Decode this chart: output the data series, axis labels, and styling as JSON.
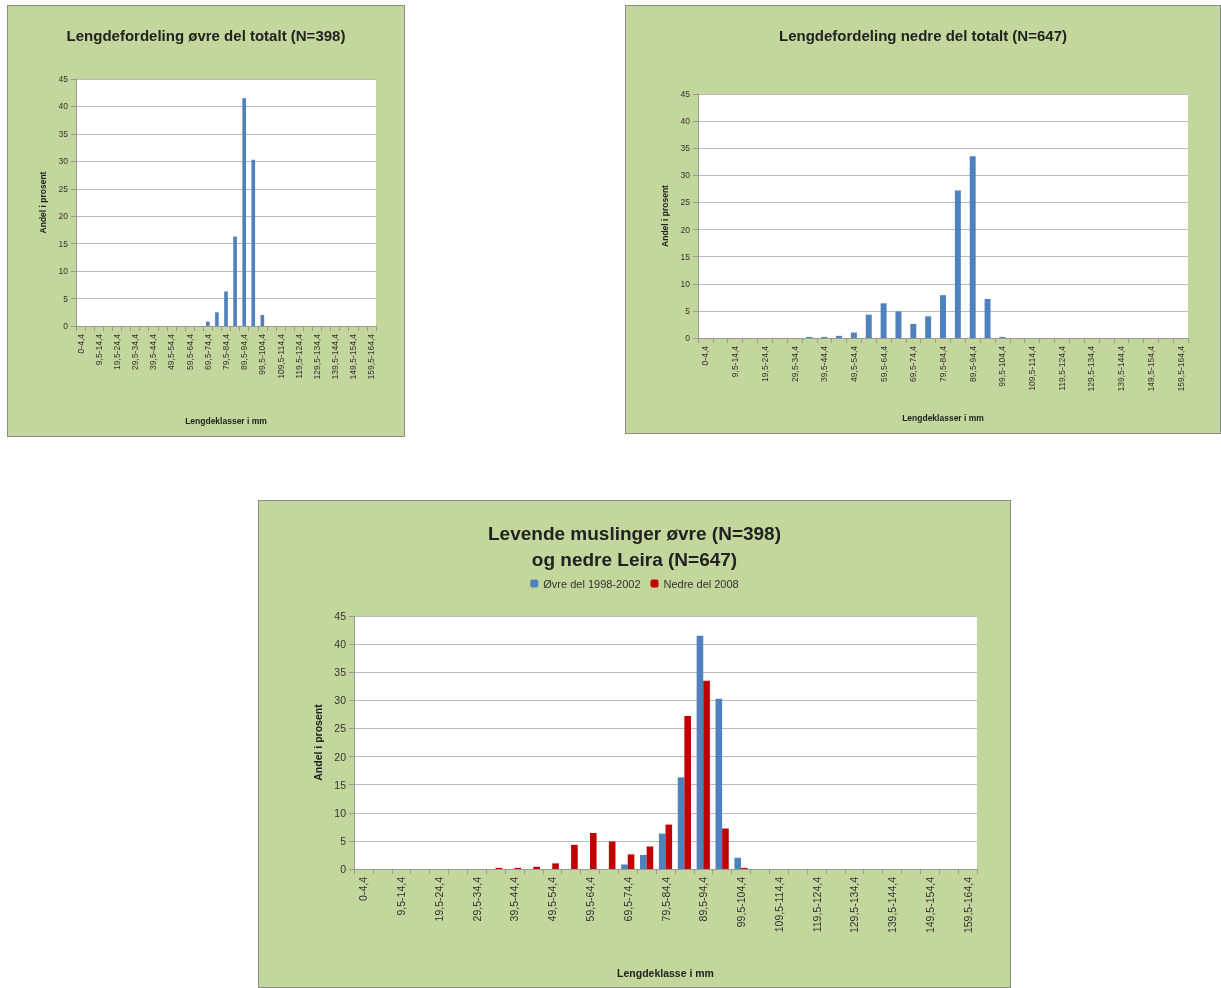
{
  "chart_data": [
    {
      "type": "bar",
      "title": "Lengdefordeling øvre del totalt (N=398)",
      "xlabel": "Lengdeklasser i mm",
      "ylabel": "Andel i prosent",
      "categories": [
        "0-4,4",
        null,
        "9,5-14,4",
        null,
        "19,5-24,4",
        null,
        "29,5-34,4",
        null,
        "39,5-44,4",
        null,
        "49,5-54,4",
        null,
        "59,5-64,4",
        null,
        "69,5-74,4",
        null,
        "79,5-84,4",
        null,
        "89,5-94,4",
        null,
        "99,5-104,4",
        null,
        "109,5-114,4",
        null,
        "119,5-124,4",
        null,
        "129,5-134,4",
        null,
        "139,5-144,4",
        null,
        "149,5-154,4",
        null,
        "159,5-164,4"
      ],
      "values": [
        0,
        0,
        0,
        0,
        0,
        0,
        0,
        0,
        0,
        0,
        0,
        0,
        0,
        0,
        0.8,
        2.5,
        6.3,
        16.3,
        41.5,
        30.3,
        2.0,
        0,
        0,
        0,
        0,
        0,
        0,
        0,
        0,
        0,
        0,
        0,
        0
      ],
      "color": "#4f81bd",
      "ylim": [
        0,
        45
      ],
      "yticks": [
        0,
        5,
        10,
        15,
        20,
        25,
        30,
        35,
        40,
        45
      ],
      "grid": "y",
      "legend": false
    },
    {
      "type": "bar",
      "title": "Lengdefordeling nedre del totalt (N=647)",
      "xlabel": "Lengdeklasser i mm",
      "ylabel": "Andel i prosent",
      "categories": [
        "0-4,4",
        null,
        "9,5-14,4",
        null,
        "19,5-24,4",
        null,
        "29,5-34,4",
        null,
        "39,5-44,4",
        null,
        "49,5-54,4",
        null,
        "59,5-64,4",
        null,
        "69,5-74,4",
        null,
        "79,5-84,4",
        null,
        "89,5-94,4",
        null,
        "99,5-104,4",
        null,
        "109,5-114,4",
        null,
        "119,5-124,4",
        null,
        "129,5-134,4",
        null,
        "139,5-144,4",
        null,
        "149,5-154,4",
        null,
        "159,5-164,4"
      ],
      "values": [
        0,
        0,
        0,
        0,
        0,
        0,
        0,
        0.2,
        0.2,
        0.4,
        1.0,
        4.3,
        6.4,
        4.9,
        2.6,
        4.0,
        7.9,
        27.2,
        33.5,
        7.2,
        0.2,
        0,
        0,
        0,
        0,
        0,
        0,
        0,
        0,
        0,
        0,
        0,
        0
      ],
      "color": "#4f81bd",
      "ylim": [
        0,
        45
      ],
      "yticks": [
        0,
        5,
        10,
        15,
        20,
        25,
        30,
        35,
        40,
        45
      ],
      "grid": "y",
      "legend": false
    },
    {
      "type": "bar",
      "title": "Levende muslinger øvre (N=398)\nog nedre Leira (N=647)",
      "xlabel": "Lengdeklasse i mm",
      "ylabel": "Andel i prosent",
      "categories": [
        "0-4,4",
        null,
        "9,5-14,4",
        null,
        "19,5-24,4",
        null,
        "29,5-34,4",
        null,
        "39,5-44,4",
        null,
        "49,5-54,4",
        null,
        "59,5-64,4",
        null,
        "69,5-74,4",
        null,
        "79,5-84,4",
        null,
        "89,5-94,4",
        null,
        "99,5-104,4",
        null,
        "109,5-114,4",
        null,
        "119,5-124,4",
        null,
        "129,5-134,4",
        null,
        "139,5-144,4",
        null,
        "149,5-154,4",
        null,
        "159,5-164,4"
      ],
      "series": [
        {
          "name": "Øvre del 1998-2002",
          "color": "#4f81bd",
          "values": [
            0,
            0,
            0,
            0,
            0,
            0,
            0,
            0,
            0,
            0,
            0,
            0,
            0,
            0,
            0.8,
            2.5,
            6.3,
            16.3,
            41.5,
            30.3,
            2.0,
            0,
            0,
            0,
            0,
            0,
            0,
            0,
            0,
            0,
            0,
            0,
            0
          ]
        },
        {
          "name": "Nedre del 2008",
          "color": "#c00000",
          "values": [
            0,
            0,
            0,
            0,
            0,
            0,
            0,
            0.2,
            0.2,
            0.4,
            1.0,
            4.3,
            6.4,
            4.9,
            2.6,
            4.0,
            7.9,
            27.2,
            33.5,
            7.2,
            0.2,
            0,
            0,
            0,
            0,
            0,
            0,
            0,
            0,
            0,
            0,
            0,
            0
          ]
        }
      ],
      "ylim": [
        0,
        45
      ],
      "yticks": [
        0,
        5,
        10,
        15,
        20,
        25,
        30,
        35,
        40,
        45
      ],
      "grid": "y",
      "legend": "top"
    }
  ]
}
